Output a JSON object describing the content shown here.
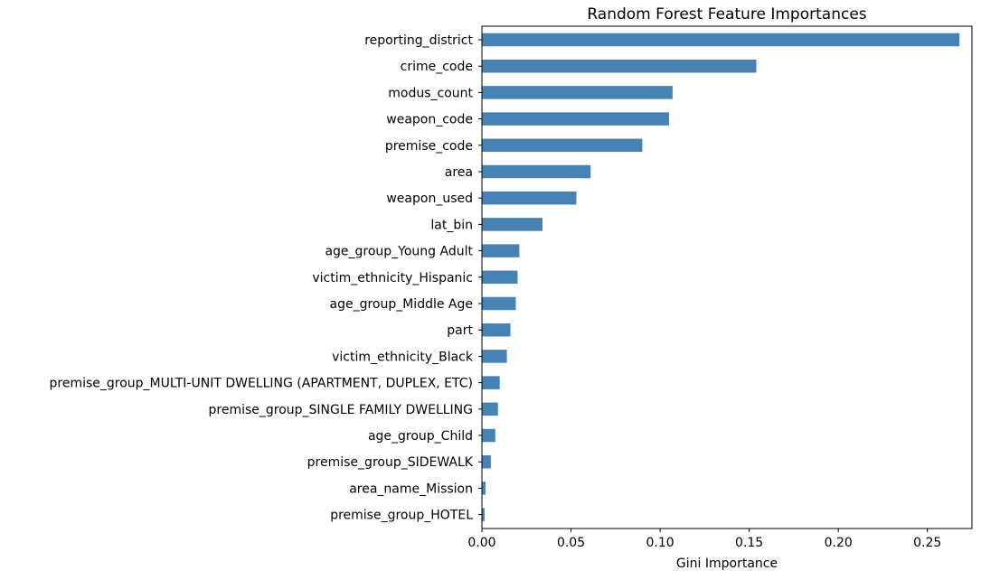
{
  "chart_data": {
    "type": "bar",
    "orientation": "horizontal",
    "title": "Random Forest Feature Importances",
    "xlabel": "Gini Importance",
    "ylabel": "",
    "xlim": [
      0,
      0.275
    ],
    "xticks": [
      0.0,
      0.05,
      0.1,
      0.15,
      0.2,
      0.25
    ],
    "xtick_labels": [
      "0.00",
      "0.05",
      "0.10",
      "0.15",
      "0.20",
      "0.25"
    ],
    "grid": false,
    "bar_color": "#4682b4",
    "categories": [
      "reporting_district",
      "crime_code",
      "modus_count",
      "weapon_code",
      "premise_code",
      "area",
      "weapon_used",
      "lat_bin",
      "age_group_Young Adult",
      "victim_ethnicity_Hispanic",
      "age_group_Middle Age",
      "part",
      "victim_ethnicity_Black",
      "premise_group_MULTI-UNIT DWELLING (APARTMENT, DUPLEX, ETC)",
      "premise_group_SINGLE FAMILY DWELLING",
      "age_group_Child",
      "premise_group_SIDEWALK",
      "area_name_Mission",
      "premise_group_HOTEL"
    ],
    "values": [
      0.268,
      0.154,
      0.107,
      0.105,
      0.09,
      0.061,
      0.053,
      0.034,
      0.021,
      0.02,
      0.019,
      0.016,
      0.014,
      0.01,
      0.009,
      0.0075,
      0.005,
      0.002,
      0.0015
    ]
  }
}
